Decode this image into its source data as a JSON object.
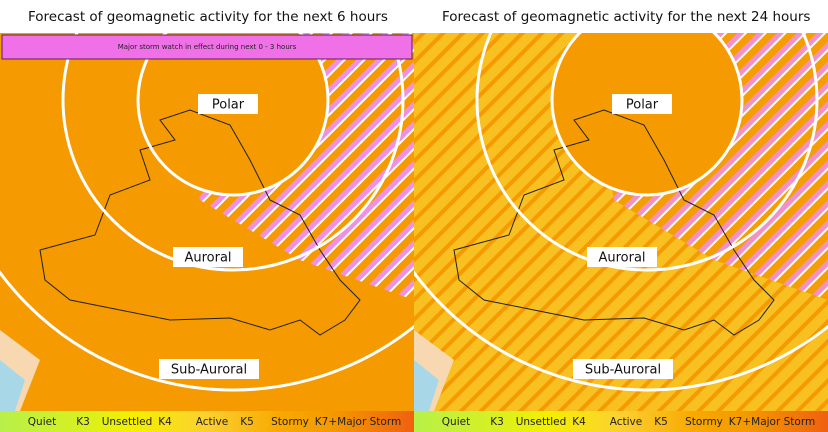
{
  "panels": [
    {
      "title": "Forecast of geomagnetic activity for the next 6 hours",
      "banner": "Major storm watch in effect during next 0 - 3 hours",
      "zones": [
        "Polar",
        "Auroral",
        "Sub-Auroral"
      ],
      "legend": [
        "Quiet",
        "K3",
        "Unsettled",
        "K4",
        "Active",
        "K5",
        "Stormy",
        "K7+Major Storm"
      ]
    },
    {
      "title": "Forecast of geomagnetic activity for the next 24 hours",
      "zones": [
        "Polar",
        "Auroral",
        "Sub-Auroral"
      ],
      "legend": [
        "Quiet",
        "K3",
        "Unsettled",
        "K4",
        "Active",
        "K5",
        "Stormy",
        "K7+Major Storm"
      ]
    }
  ]
}
